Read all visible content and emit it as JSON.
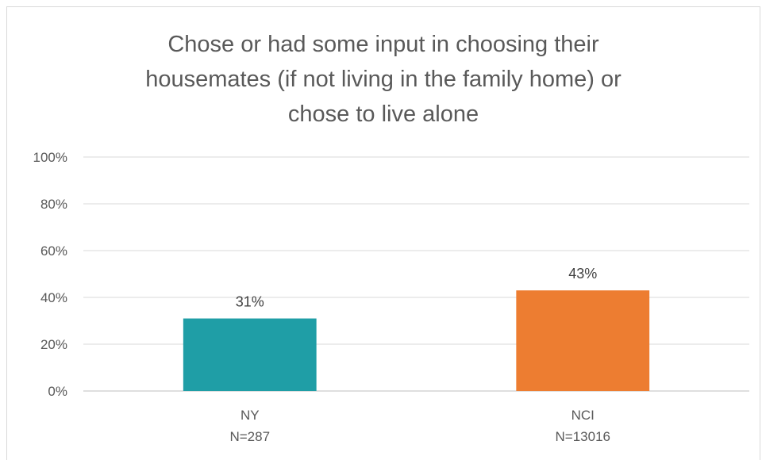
{
  "chart_data": {
    "type": "bar",
    "title": "Chose or had some input in choosing their\nhousemates (if not living in the family home) or\nchose to live alone",
    "categories": [
      {
        "name": "NY",
        "n": "N=287"
      },
      {
        "name": "NCI",
        "n": "N=13016"
      }
    ],
    "values": [
      31,
      43
    ],
    "data_labels": [
      "31%",
      "43%"
    ],
    "colors": [
      "#1f9ea6",
      "#ed7d31"
    ],
    "y_ticks": [
      "0%",
      "20%",
      "40%",
      "60%",
      "80%",
      "100%"
    ],
    "ylim": [
      0,
      100
    ],
    "grid": true,
    "legend": "none"
  }
}
